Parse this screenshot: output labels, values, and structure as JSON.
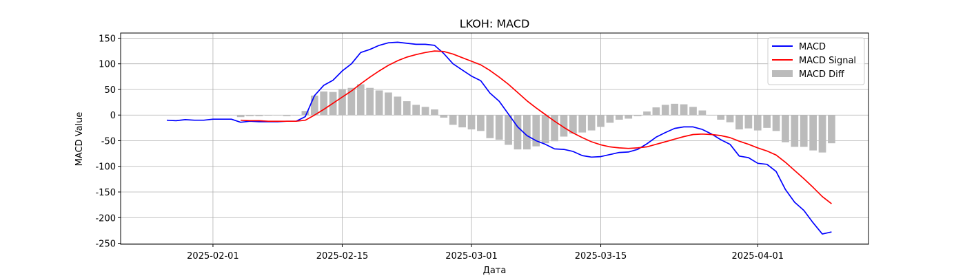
{
  "chart_data": {
    "type": "line",
    "title": "LKOH: MACD",
    "xlabel": "Дата",
    "ylabel": "MACD Value",
    "ylim": [
      -252,
      160
    ],
    "xlim": [
      "2025-01-22",
      "2025-04-13"
    ],
    "grid": true,
    "legend_position": "top-right",
    "x_ticks": [
      "2025-02-01",
      "2025-02-15",
      "2025-03-01",
      "2025-03-15",
      "2025-04-01"
    ],
    "y_ticks": [
      150,
      100,
      50,
      0,
      -50,
      -100,
      -150,
      -200,
      -250
    ],
    "series": [
      {
        "name": "MACD",
        "kind": "line",
        "color": "#0000ff",
        "x": [
          "2025-01-27",
          "2025-01-28",
          "2025-01-29",
          "2025-01-30",
          "2025-01-31",
          "2025-02-01",
          "2025-02-02",
          "2025-02-03",
          "2025-02-04",
          "2025-02-05",
          "2025-02-06",
          "2025-02-07",
          "2025-02-08",
          "2025-02-09",
          "2025-02-10",
          "2025-02-11",
          "2025-02-12",
          "2025-02-13",
          "2025-02-14",
          "2025-02-15",
          "2025-02-16",
          "2025-02-17",
          "2025-02-18",
          "2025-02-19",
          "2025-02-20",
          "2025-02-21",
          "2025-02-22",
          "2025-02-23",
          "2025-02-24",
          "2025-02-25",
          "2025-02-26",
          "2025-02-27",
          "2025-02-28",
          "2025-03-01",
          "2025-03-02",
          "2025-03-03",
          "2025-03-04",
          "2025-03-05",
          "2025-03-06",
          "2025-03-07",
          "2025-03-08",
          "2025-03-09",
          "2025-03-10",
          "2025-03-11",
          "2025-03-12",
          "2025-03-13",
          "2025-03-14",
          "2025-03-15",
          "2025-03-16",
          "2025-03-17",
          "2025-03-18",
          "2025-03-19",
          "2025-03-20",
          "2025-03-21",
          "2025-03-22",
          "2025-03-23",
          "2025-03-24",
          "2025-03-25",
          "2025-03-26",
          "2025-03-27",
          "2025-03-28",
          "2025-03-29",
          "2025-03-30",
          "2025-03-31",
          "2025-04-01",
          "2025-04-02",
          "2025-04-03",
          "2025-04-04",
          "2025-04-05",
          "2025-04-06",
          "2025-04-07",
          "2025-04-08",
          "2025-04-09"
        ],
        "values": [
          -10,
          -11,
          -9,
          -10,
          -10,
          -8,
          -8,
          -8,
          -14,
          -12,
          -13,
          -13,
          -13,
          -12,
          -12,
          -3,
          38,
          58,
          68,
          86,
          100,
          122,
          128,
          136,
          141,
          142,
          140,
          138,
          138,
          136,
          120,
          100,
          88,
          76,
          67,
          43,
          27,
          2,
          -23,
          -40,
          -50,
          -57,
          -66,
          -67,
          -71,
          -79,
          -82,
          -81,
          -77,
          -73,
          -72,
          -67,
          -56,
          -43,
          -34,
          -26,
          -23,
          -23,
          -28,
          -37,
          -48,
          -57,
          -80,
          -83,
          -94,
          -96,
          -110,
          -145,
          -170,
          -186,
          -210,
          -232,
          -228
        ]
      },
      {
        "name": "MACD Signal",
        "kind": "line",
        "color": "#ff0000",
        "x": [
          "2025-02-04",
          "2025-02-05",
          "2025-02-06",
          "2025-02-07",
          "2025-02-08",
          "2025-02-09",
          "2025-02-10",
          "2025-02-11",
          "2025-02-12",
          "2025-02-13",
          "2025-02-14",
          "2025-02-15",
          "2025-02-16",
          "2025-02-17",
          "2025-02-18",
          "2025-02-19",
          "2025-02-20",
          "2025-02-21",
          "2025-02-22",
          "2025-02-23",
          "2025-02-24",
          "2025-02-25",
          "2025-02-26",
          "2025-02-27",
          "2025-02-28",
          "2025-03-01",
          "2025-03-02",
          "2025-03-03",
          "2025-03-04",
          "2025-03-05",
          "2025-03-06",
          "2025-03-07",
          "2025-03-08",
          "2025-03-09",
          "2025-03-10",
          "2025-03-11",
          "2025-03-12",
          "2025-03-13",
          "2025-03-14",
          "2025-03-15",
          "2025-03-16",
          "2025-03-17",
          "2025-03-18",
          "2025-03-19",
          "2025-03-20",
          "2025-03-21",
          "2025-03-22",
          "2025-03-23",
          "2025-03-24",
          "2025-03-25",
          "2025-03-26",
          "2025-03-27",
          "2025-03-28",
          "2025-03-29",
          "2025-03-30",
          "2025-03-31",
          "2025-04-01",
          "2025-04-02",
          "2025-04-03",
          "2025-04-04",
          "2025-04-05",
          "2025-04-06",
          "2025-04-07",
          "2025-04-08",
          "2025-04-09"
        ],
        "values": [
          -10,
          -11,
          -11,
          -12,
          -12,
          -12,
          -12,
          -10,
          0,
          11,
          23,
          35,
          47,
          61,
          74,
          86,
          97,
          106,
          113,
          118,
          122,
          125,
          124,
          119,
          112,
          105,
          98,
          87,
          74,
          60,
          44,
          28,
          14,
          1,
          -12,
          -24,
          -35,
          -44,
          -52,
          -58,
          -62,
          -64,
          -65,
          -64,
          -62,
          -57,
          -52,
          -47,
          -42,
          -38,
          -37,
          -38,
          -40,
          -44,
          -51,
          -57,
          -64,
          -70,
          -78,
          -92,
          -108,
          -124,
          -141,
          -159,
          -173
        ]
      },
      {
        "name": "MACD Diff",
        "kind": "bar",
        "color": "#bbbbbb",
        "x": [
          "2025-02-04",
          "2025-02-05",
          "2025-02-06",
          "2025-02-07",
          "2025-02-08",
          "2025-02-09",
          "2025-02-10",
          "2025-02-11",
          "2025-02-12",
          "2025-02-13",
          "2025-02-14",
          "2025-02-15",
          "2025-02-16",
          "2025-02-17",
          "2025-02-18",
          "2025-02-19",
          "2025-02-20",
          "2025-02-21",
          "2025-02-22",
          "2025-02-23",
          "2025-02-24",
          "2025-02-25",
          "2025-02-26",
          "2025-02-27",
          "2025-02-28",
          "2025-03-01",
          "2025-03-02",
          "2025-03-03",
          "2025-03-04",
          "2025-03-05",
          "2025-03-06",
          "2025-03-07",
          "2025-03-08",
          "2025-03-09",
          "2025-03-10",
          "2025-03-11",
          "2025-03-12",
          "2025-03-13",
          "2025-03-14",
          "2025-03-15",
          "2025-03-16",
          "2025-03-17",
          "2025-03-18",
          "2025-03-19",
          "2025-03-20",
          "2025-03-21",
          "2025-03-22",
          "2025-03-23",
          "2025-03-24",
          "2025-03-25",
          "2025-03-26",
          "2025-03-27",
          "2025-03-28",
          "2025-03-29",
          "2025-03-30",
          "2025-03-31",
          "2025-04-01",
          "2025-04-02",
          "2025-04-03",
          "2025-04-04",
          "2025-04-05",
          "2025-04-06",
          "2025-04-07",
          "2025-04-08",
          "2025-04-09"
        ],
        "values": [
          -4,
          -2,
          -2,
          -1,
          0,
          -2,
          0,
          8,
          38,
          46,
          45,
          51,
          53,
          60,
          53,
          48,
          44,
          36,
          27,
          20,
          16,
          11,
          -5,
          -19,
          -24,
          -28,
          -31,
          -45,
          -48,
          -58,
          -67,
          -67,
          -61,
          -55,
          -51,
          -42,
          -36,
          -34,
          -30,
          -23,
          -15,
          -9,
          -7,
          -2,
          7,
          15,
          20,
          22,
          21,
          16,
          9,
          0,
          -9,
          -14,
          -28,
          -26,
          -30,
          -25,
          -31,
          -53,
          -62,
          -62,
          -69,
          -73,
          -55
        ]
      }
    ]
  }
}
